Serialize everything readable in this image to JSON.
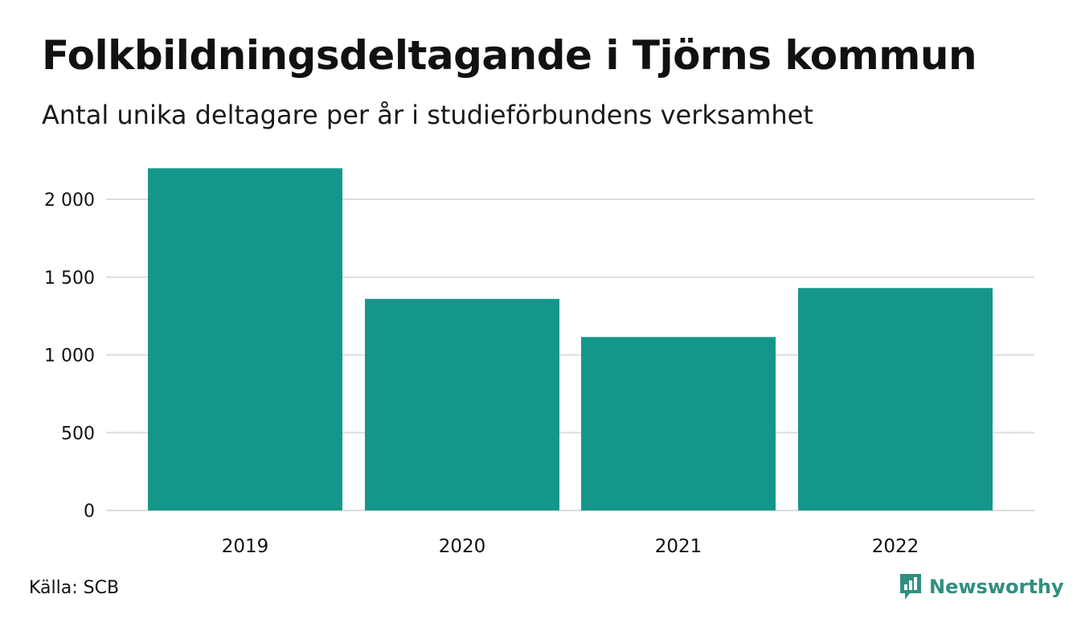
{
  "colors": {
    "bar": "#14978a",
    "grid": "#dddddd",
    "text": "#111111",
    "brand": "#2f8f80"
  },
  "footer": {
    "source": "Källa: SCB",
    "brand_name": "Newsworthy",
    "brand_icon": "newsworthy-chart-bubble-icon"
  },
  "chart_data": {
    "type": "bar",
    "title": "Folkbildningsdeltagande i Tjörns kommun",
    "subtitle": "Antal unika deltagare per år i studieförbundens verksamhet",
    "categories": [
      "2019",
      "2020",
      "2021",
      "2022"
    ],
    "values": [
      2200,
      1360,
      1115,
      1430
    ],
    "ylim": [
      0,
      2250
    ],
    "yticks": [
      0,
      500,
      1000,
      1500,
      2000
    ],
    "ytick_labels": [
      "0",
      "500",
      "1 000",
      "1 500",
      "2 000"
    ],
    "grid": true,
    "legend": "none"
  }
}
